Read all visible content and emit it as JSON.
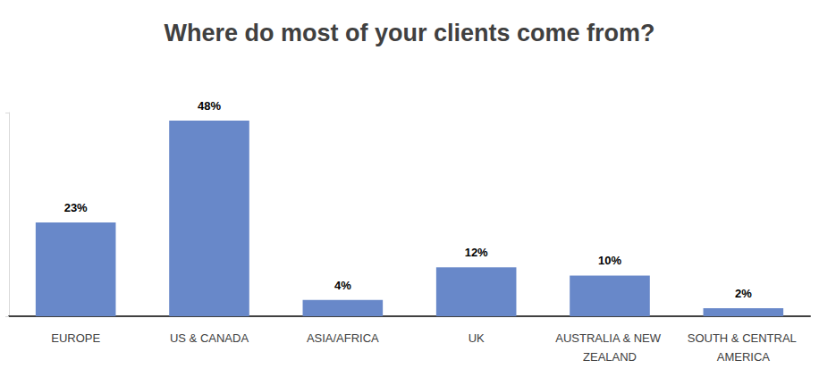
{
  "chart_data": {
    "type": "bar",
    "title": "Where do most of your clients come from?",
    "categories": [
      "EUROPE",
      "US & CANADA",
      "ASIA/AFRICA",
      "UK",
      "AUSTRALIA & NEW ZEALAND",
      "SOUTH & CENTRAL AMERICA"
    ],
    "values": [
      23,
      48,
      4,
      12,
      10,
      2
    ],
    "value_labels": [
      "23%",
      "48%",
      "4%",
      "12%",
      "10%",
      "2%"
    ],
    "color": "#6888c9",
    "ylim": [
      0,
      50
    ],
    "yticks": [
      0,
      50
    ],
    "grid": false,
    "data_labels": true,
    "tick_labels": "x"
  }
}
